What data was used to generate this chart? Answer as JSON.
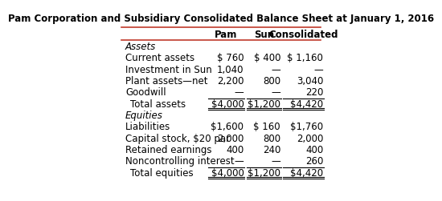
{
  "title": "Pam Corporation and Subsidiary Consolidated Balance Sheet at January 1, 2016",
  "columns": [
    "Pam",
    "Sun",
    "Consolidated"
  ],
  "rows": [
    {
      "label": "Assets",
      "italic": true,
      "pam": "",
      "sun": "",
      "cons": "",
      "indent": 0
    },
    {
      "label": "Current assets",
      "italic": false,
      "pam": "$ 760",
      "sun": "$ 400",
      "cons": "$ 1,160",
      "indent": 0
    },
    {
      "label": "Investment in Sun",
      "italic": false,
      "pam": "1,040",
      "sun": "—",
      "cons": "—",
      "indent": 0
    },
    {
      "label": "Plant assets—net",
      "italic": false,
      "pam": "2,200",
      "sun": "800",
      "cons": "3,040",
      "indent": 0
    },
    {
      "label": "Goodwill",
      "italic": false,
      "pam": "—",
      "sun": "—",
      "cons": "220",
      "indent": 0
    },
    {
      "label": "Total assets",
      "italic": false,
      "pam": "$4,000",
      "sun": "$1,200",
      "cons": "$4,420",
      "indent": 1,
      "overline": true,
      "double_underline": true
    },
    {
      "label": "Equities",
      "italic": true,
      "pam": "",
      "sun": "",
      "cons": "",
      "indent": 0
    },
    {
      "label": "Liabilities",
      "italic": false,
      "pam": "$1,600",
      "sun": "$ 160",
      "cons": "$1,760",
      "indent": 0
    },
    {
      "label": "Capital stock, $20 par",
      "italic": false,
      "pam": "2,000",
      "sun": "800",
      "cons": "2,000",
      "indent": 0
    },
    {
      "label": "Retained earnings",
      "italic": false,
      "pam": "400",
      "sun": "240",
      "cons": "400",
      "indent": 0
    },
    {
      "label": "Noncontrolling interest",
      "italic": false,
      "pam": "—",
      "sun": "—",
      "cons": "260",
      "indent": 0
    },
    {
      "label": "Total equities",
      "italic": false,
      "pam": "$4,000",
      "sun": "$1,200",
      "cons": "$4,420",
      "indent": 1,
      "overline": true,
      "double_underline": true
    }
  ],
  "bg_color": "#ffffff",
  "header_line_color": "#c0392b",
  "text_color": "#000000",
  "font_size": 8.5,
  "title_font_size": 8.5
}
